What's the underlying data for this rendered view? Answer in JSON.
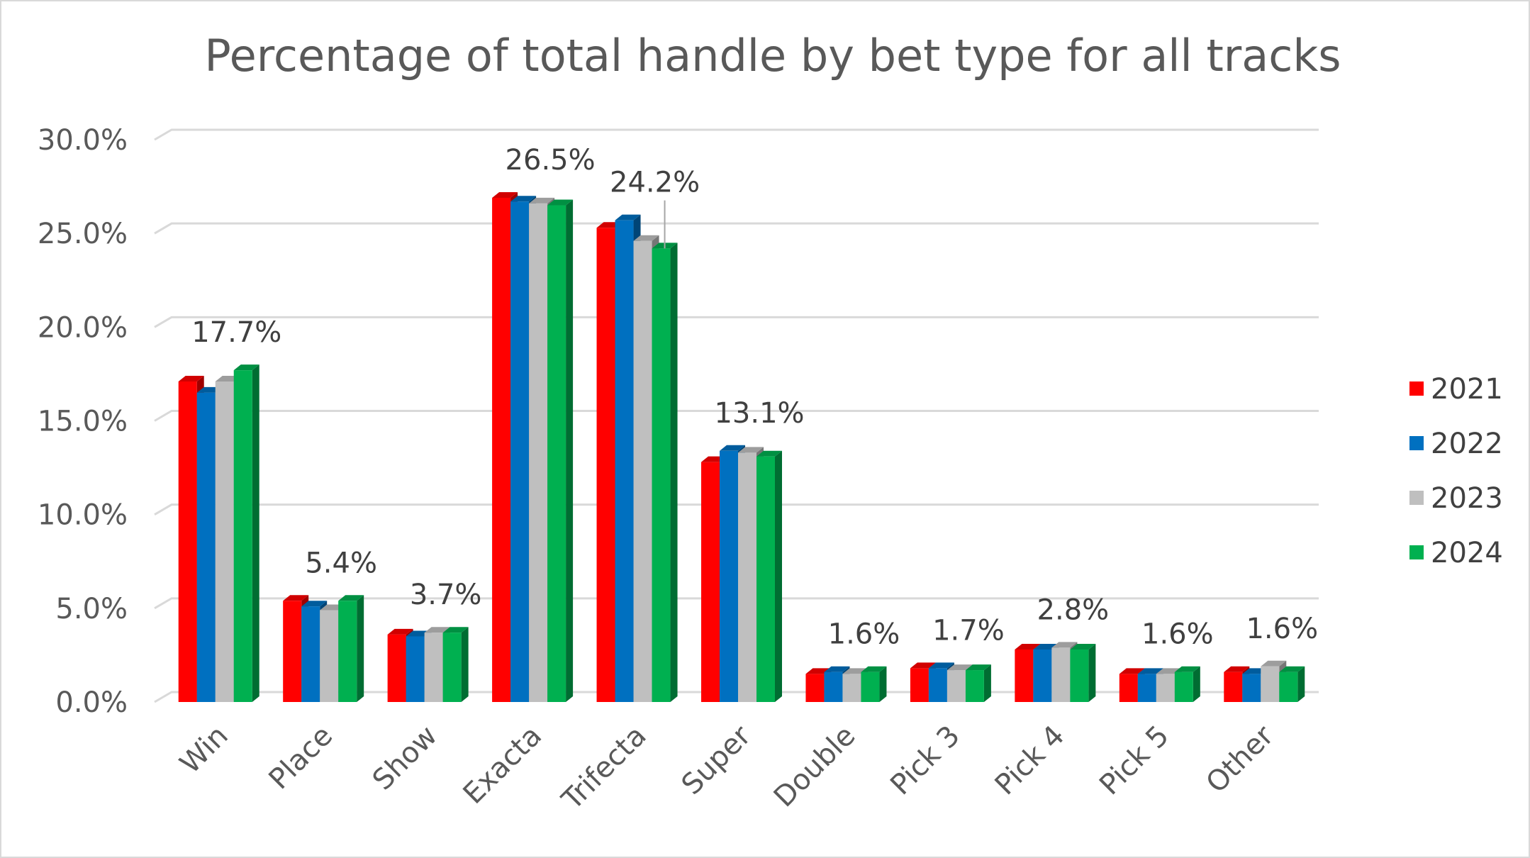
{
  "chart_data": {
    "type": "bar",
    "title": "Percentage of total handle by bet type for all tracks",
    "xlabel": "",
    "ylabel": "",
    "ylim": [
      0,
      30
    ],
    "y_ticks": [
      "0.0%",
      "5.0%",
      "10.0%",
      "15.0%",
      "20.0%",
      "25.0%",
      "30.0%"
    ],
    "grid": true,
    "legend_position": "right",
    "categories": [
      "Win",
      "Place",
      "Show",
      "Exacta",
      "Trifecta",
      "Super",
      "Double",
      "Pick 3",
      "Pick 4",
      "Pick 5",
      "Other"
    ],
    "series": [
      {
        "name": "2021",
        "color": "#ff0000",
        "values": [
          17.1,
          5.4,
          3.6,
          26.9,
          25.3,
          12.8,
          1.5,
          1.8,
          2.8,
          1.5,
          1.6
        ]
      },
      {
        "name": "2022",
        "color": "#0070c0",
        "values": [
          16.5,
          5.1,
          3.5,
          26.7,
          25.7,
          13.4,
          1.6,
          1.8,
          2.8,
          1.5,
          1.5
        ]
      },
      {
        "name": "2023",
        "color": "#bfbfbf",
        "values": [
          17.1,
          4.9,
          3.7,
          26.6,
          24.6,
          13.3,
          1.5,
          1.7,
          2.9,
          1.5,
          1.9
        ]
      },
      {
        "name": "2024",
        "color": "#00b050",
        "values": [
          17.7,
          5.4,
          3.7,
          26.5,
          24.2,
          13.1,
          1.6,
          1.7,
          2.8,
          1.6,
          1.6
        ]
      }
    ],
    "data_labels": {
      "series": "2024",
      "texts": [
        "17.7%",
        "5.4%",
        "3.7%",
        "26.5%",
        "24.2%",
        "13.1%",
        "1.6%",
        "1.7%",
        "2.8%",
        "1.6%",
        "1.6%"
      ]
    }
  }
}
